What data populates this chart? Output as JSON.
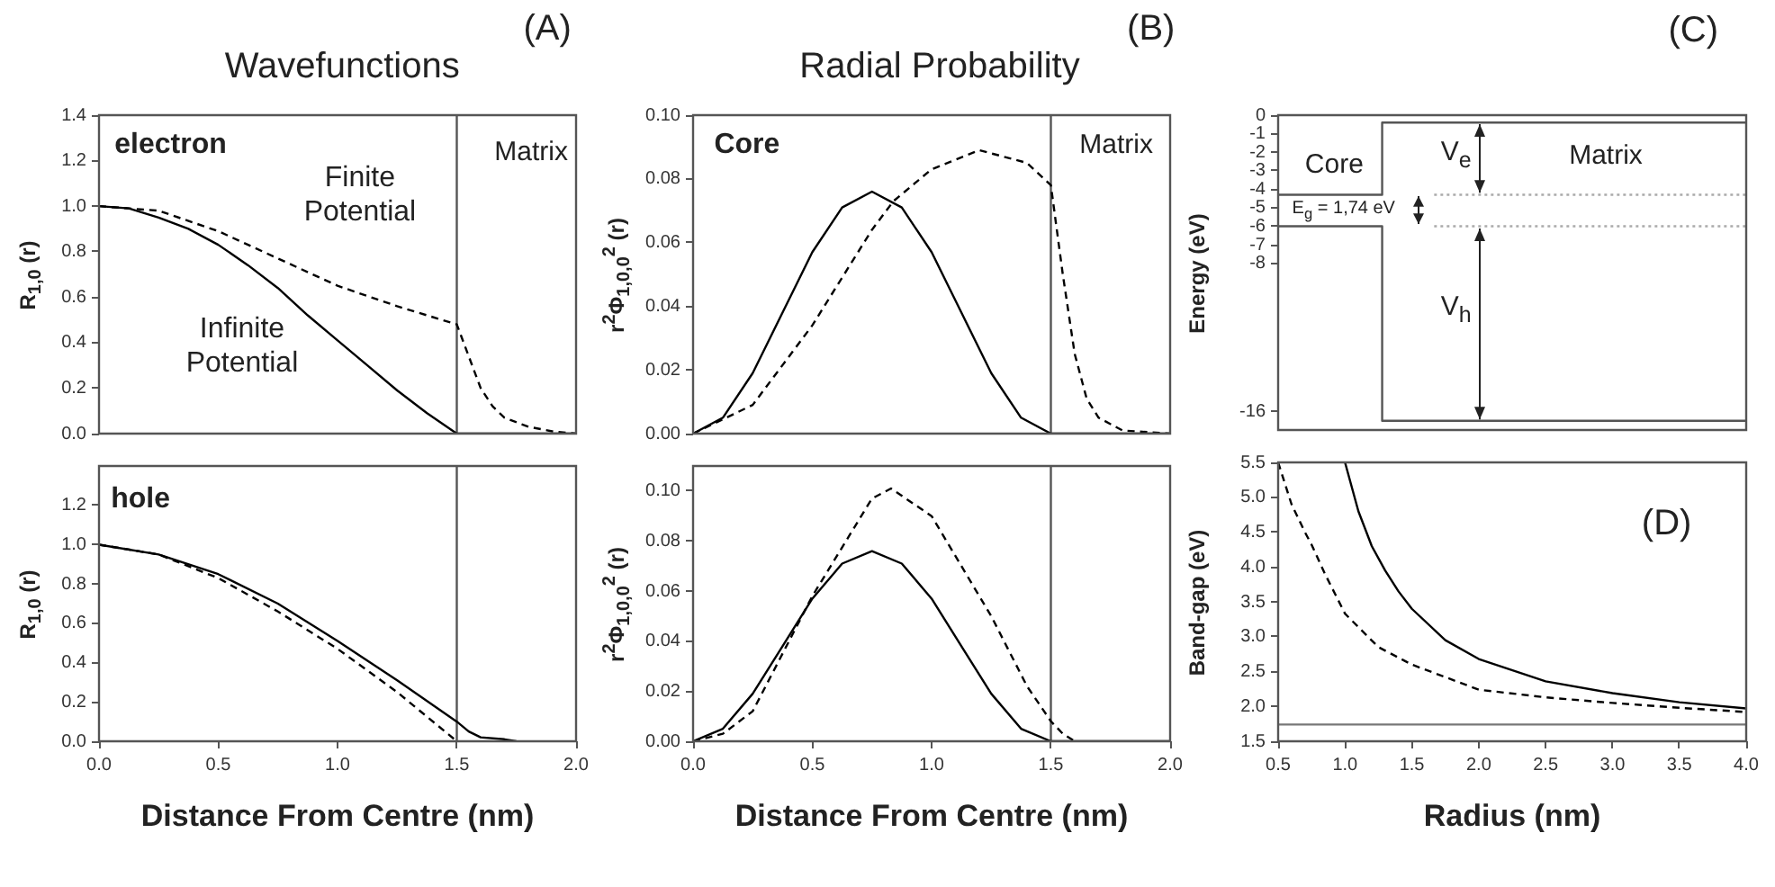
{
  "chart_data": [
    {
      "type": "line",
      "title": "Wavefunctions",
      "ylabel": "R$_{1,0}$ (r)",
      "annotations": [
        "(A)",
        "electron",
        "Matrix"
      ],
      "tick_labels": "y",
      "xlim": [
        0,
        2
      ],
      "ylim": [
        0,
        1.4
      ],
      "yticks": [
        {
          "value": 0,
          "label": "0.0"
        },
        {
          "value": 0.2,
          "label": "0.2"
        },
        {
          "value": 0.4,
          "label": "0.4"
        },
        {
          "value": 0.6,
          "label": "0.6"
        },
        {
          "value": 0.8,
          "label": "0.8"
        },
        {
          "value": 1,
          "label": "1.0"
        },
        {
          "value": 1.2,
          "label": "1.2"
        },
        {
          "value": 1.4,
          "label": "1.4"
        }
      ],
      "ref_lines": [
        {
          "axis": "x",
          "value": 1.5,
          "color": "#555555"
        }
      ],
      "series": [
        {
          "name": "Finite Potential",
          "color": "#000000",
          "line_style": "dashed",
          "x": [
            0,
            0.25,
            0.5,
            0.75,
            1.0,
            1.25,
            1.5,
            1.55,
            1.6,
            1.65,
            1.7,
            1.8,
            1.9,
            2.0
          ],
          "values": [
            1.0,
            0.98,
            0.89,
            0.77,
            0.65,
            0.56,
            0.48,
            0.34,
            0.2,
            0.12,
            0.07,
            0.03,
            0.01,
            0.0
          ]
        },
        {
          "name": "Infinite Potential",
          "color": "#000000",
          "line_style": "solid",
          "x": [
            0,
            0.125,
            0.25,
            0.375,
            0.5,
            0.625,
            0.75,
            0.875,
            1.0,
            1.125,
            1.25,
            1.375,
            1.5,
            1.75,
            2.0
          ],
          "values": [
            1.0,
            0.99,
            0.95,
            0.9,
            0.83,
            0.74,
            0.64,
            0.52,
            0.41,
            0.3,
            0.19,
            0.09,
            0.0,
            0.0,
            0.0
          ]
        }
      ]
    },
    {
      "type": "line",
      "xlabel": "Distance From Centre (nm)",
      "ylabel": "R$_{1,0}$ (r)",
      "annotations": [
        "hole"
      ],
      "xlim": [
        0,
        2
      ],
      "xticks": [
        {
          "value": 0,
          "label": "0.0"
        },
        {
          "value": 0.5,
          "label": "0.5"
        },
        {
          "value": 1,
          "label": "1.0"
        },
        {
          "value": 1.5,
          "label": "1.5"
        },
        {
          "value": 2,
          "label": "2.0"
        }
      ],
      "ylim": [
        0,
        1.4
      ],
      "yticks": [
        {
          "value": 0,
          "label": "0.0"
        },
        {
          "value": 0.2,
          "label": "0.2"
        },
        {
          "value": 0.4,
          "label": "0.4"
        },
        {
          "value": 0.6,
          "label": "0.6"
        },
        {
          "value": 0.8,
          "label": "0.8"
        },
        {
          "value": 1,
          "label": "1.0"
        },
        {
          "value": 1.2,
          "label": "1.2"
        }
      ],
      "ref_lines": [
        {
          "axis": "x",
          "value": 1.5,
          "color": "#555555"
        }
      ],
      "series": [
        {
          "color": "#000000",
          "line_style": "solid",
          "x": [
            0,
            0.25,
            0.5,
            0.75,
            1.0,
            1.25,
            1.5,
            1.55,
            1.6,
            1.7,
            1.75
          ],
          "values": [
            1.0,
            0.95,
            0.85,
            0.7,
            0.51,
            0.31,
            0.1,
            0.05,
            0.02,
            0.01,
            0.0
          ]
        },
        {
          "color": "#000000",
          "line_style": "dashed",
          "x": [
            0,
            0.25,
            0.5,
            0.75,
            1.0,
            1.25,
            1.5
          ],
          "values": [
            1.0,
            0.95,
            0.83,
            0.66,
            0.47,
            0.25,
            0.0
          ]
        }
      ]
    },
    {
      "type": "line",
      "title": "Radial Probability",
      "ylabel": "r$^{2}$Φ$_{1,0,0}$$^{2}$ (r)",
      "annotations": [
        "(B)",
        "Core",
        "Matrix"
      ],
      "tick_labels": "y",
      "xlim": [
        0,
        2
      ],
      "ylim": [
        0,
        0.1
      ],
      "yticks": [
        {
          "value": 0,
          "label": "0.00"
        },
        {
          "value": 0.02,
          "label": "0.02"
        },
        {
          "value": 0.04,
          "label": "0.04"
        },
        {
          "value": 0.06,
          "label": "0.06"
        },
        {
          "value": 0.08,
          "label": "0.08"
        },
        {
          "value": 0.1,
          "label": "0.10"
        }
      ],
      "ref_lines": [
        {
          "axis": "x",
          "value": 1.5,
          "color": "#555555"
        }
      ],
      "series": [
        {
          "color": "#000000",
          "line_style": "solid",
          "x": [
            0,
            0.125,
            0.25,
            0.375,
            0.5,
            0.625,
            0.75,
            0.875,
            1.0,
            1.125,
            1.25,
            1.375,
            1.5,
            1.75,
            2.0
          ],
          "values": [
            0,
            0.005,
            0.019,
            0.038,
            0.057,
            0.071,
            0.076,
            0.071,
            0.057,
            0.038,
            0.019,
            0.005,
            0,
            0,
            0
          ]
        },
        {
          "color": "#000000",
          "line_style": "dashed",
          "x": [
            0,
            0.25,
            0.5,
            0.75,
            0.84,
            1.0,
            1.2,
            1.4,
            1.5,
            1.55,
            1.6,
            1.65,
            1.7,
            1.8,
            2.0
          ],
          "values": [
            0,
            0.009,
            0.034,
            0.064,
            0.073,
            0.083,
            0.089,
            0.085,
            0.078,
            0.05,
            0.025,
            0.011,
            0.005,
            0.001,
            0
          ]
        }
      ]
    },
    {
      "type": "line",
      "xlabel": "Distance From Centre (nm)",
      "ylabel": "r$^{2}$Φ$_{1,0,0}$$^{2}$ (r)",
      "xlim": [
        0,
        2
      ],
      "xticks": [
        {
          "value": 0,
          "label": "0.0"
        },
        {
          "value": 0.5,
          "label": "0.5"
        },
        {
          "value": 1,
          "label": "1.0"
        },
        {
          "value": 1.5,
          "label": "1.5"
        },
        {
          "value": 2,
          "label": "2.0"
        }
      ],
      "ylim": [
        0,
        0.11
      ],
      "yticks": [
        {
          "value": 0,
          "label": "0.00"
        },
        {
          "value": 0.02,
          "label": "0.02"
        },
        {
          "value": 0.04,
          "label": "0.04"
        },
        {
          "value": 0.06,
          "label": "0.06"
        },
        {
          "value": 0.08,
          "label": "0.08"
        },
        {
          "value": 0.1,
          "label": "0.10"
        }
      ],
      "ref_lines": [
        {
          "axis": "x",
          "value": 1.5,
          "color": "#555555"
        }
      ],
      "series": [
        {
          "color": "#000000",
          "line_style": "solid",
          "x": [
            0,
            0.125,
            0.25,
            0.375,
            0.5,
            0.625,
            0.75,
            0.875,
            1.0,
            1.125,
            1.25,
            1.375,
            1.5,
            1.75,
            2.0
          ],
          "values": [
            0,
            0.005,
            0.019,
            0.038,
            0.057,
            0.071,
            0.076,
            0.071,
            0.057,
            0.038,
            0.019,
            0.005,
            0,
            0,
            0
          ]
        },
        {
          "color": "#000000",
          "line_style": "dashed",
          "x": [
            0,
            0.125,
            0.25,
            0.5,
            0.75,
            0.83,
            1.0,
            1.25,
            1.4,
            1.5,
            1.55,
            1.6
          ],
          "values": [
            0,
            0.003,
            0.012,
            0.058,
            0.097,
            0.101,
            0.09,
            0.05,
            0.022,
            0.008,
            0.003,
            0
          ]
        }
      ]
    },
    {
      "type": "step",
      "ylabel": "Energy (eV)",
      "annotations": [
        "(C)",
        "Core",
        "Matrix",
        "V$_{e}$",
        "E$_{g}$ = 1,74 eV",
        "V$_{h}$"
      ],
      "tick_labels": "y",
      "categories": [
        null,
        null,
        null,
        null,
        null,
        null,
        null,
        null,
        null,
        null
      ],
      "ylim": [
        -17,
        0
      ],
      "yticks": [
        0,
        -1,
        -2,
        -3,
        -4,
        -5,
        -6,
        -7,
        -8,
        -16
      ],
      "series": [
        {
          "color": "#555555",
          "values": [
            -4.3,
            -4.3,
            -4.3,
            -0.4,
            -0.4,
            -0.4,
            -0.4,
            -0.4,
            -0.4,
            -0.4
          ]
        },
        {
          "color": "#555555",
          "values": [
            -6.0,
            -6.0,
            -6.0,
            -16.5,
            -16.5,
            -16.5,
            -16.5,
            -16.5,
            -16.5,
            -16.5
          ]
        },
        {
          "type": "line",
          "line_style": "dotted",
          "color": "#aaaaaa",
          "values": [
            null,
            null,
            null,
            -4.3,
            -4.3,
            -4.3,
            -4.3,
            -4.3,
            -4.3,
            -4.3
          ]
        },
        {
          "type": "line",
          "line_style": "dotted",
          "color": "#aaaaaa",
          "values": [
            null,
            null,
            null,
            -6.0,
            -6.0,
            -6.0,
            -6.0,
            -6.0,
            -6.0,
            -6.0
          ]
        }
      ]
    },
    {
      "type": "line",
      "xlabel": "Radius (nm)",
      "ylabel": "Band-gap (eV)",
      "annotations": [
        "(D)"
      ],
      "xlim": [
        0.5,
        4
      ],
      "xticks": [
        0.5,
        {
          "value": 1,
          "label": "1.0"
        },
        1.5,
        {
          "value": 2,
          "label": "2.0"
        },
        2.5,
        {
          "value": 3,
          "label": "3.0"
        },
        3.5,
        {
          "value": 4,
          "label": "4.0"
        }
      ],
      "ylim": [
        1.5,
        5.5
      ],
      "yticks": [
        1.5,
        {
          "value": 2,
          "label": "2.0"
        },
        2.5,
        {
          "value": 3,
          "label": "3.0"
        },
        3.5,
        {
          "value": 4,
          "label": "4.0"
        },
        4.5,
        {
          "value": 5,
          "label": "5.0"
        },
        5.5
      ],
      "ref_lines": [
        {
          "axis": "y",
          "value": 1.74,
          "color": "#777777"
        }
      ],
      "series": [
        {
          "color": "#000000",
          "line_style": "solid",
          "x": [
            1.0,
            1.1,
            1.2,
            1.3,
            1.4,
            1.5,
            1.75,
            2.0,
            2.5,
            3.0,
            3.5,
            4.0
          ],
          "values": [
            5.5,
            4.8,
            4.3,
            3.95,
            3.65,
            3.4,
            2.95,
            2.68,
            2.36,
            2.19,
            2.06,
            1.97
          ]
        },
        {
          "color": "#000000",
          "line_style": "dashed",
          "x": [
            0.5,
            0.6,
            0.7,
            0.75,
            0.85,
            1.0,
            1.25,
            1.5,
            2.0,
            2.5,
            3.0,
            3.5,
            4.0
          ],
          "values": [
            5.5,
            4.9,
            4.5,
            4.32,
            3.9,
            3.33,
            2.85,
            2.6,
            2.24,
            2.13,
            2.05,
            1.98,
            1.92
          ]
        }
      ]
    }
  ]
}
